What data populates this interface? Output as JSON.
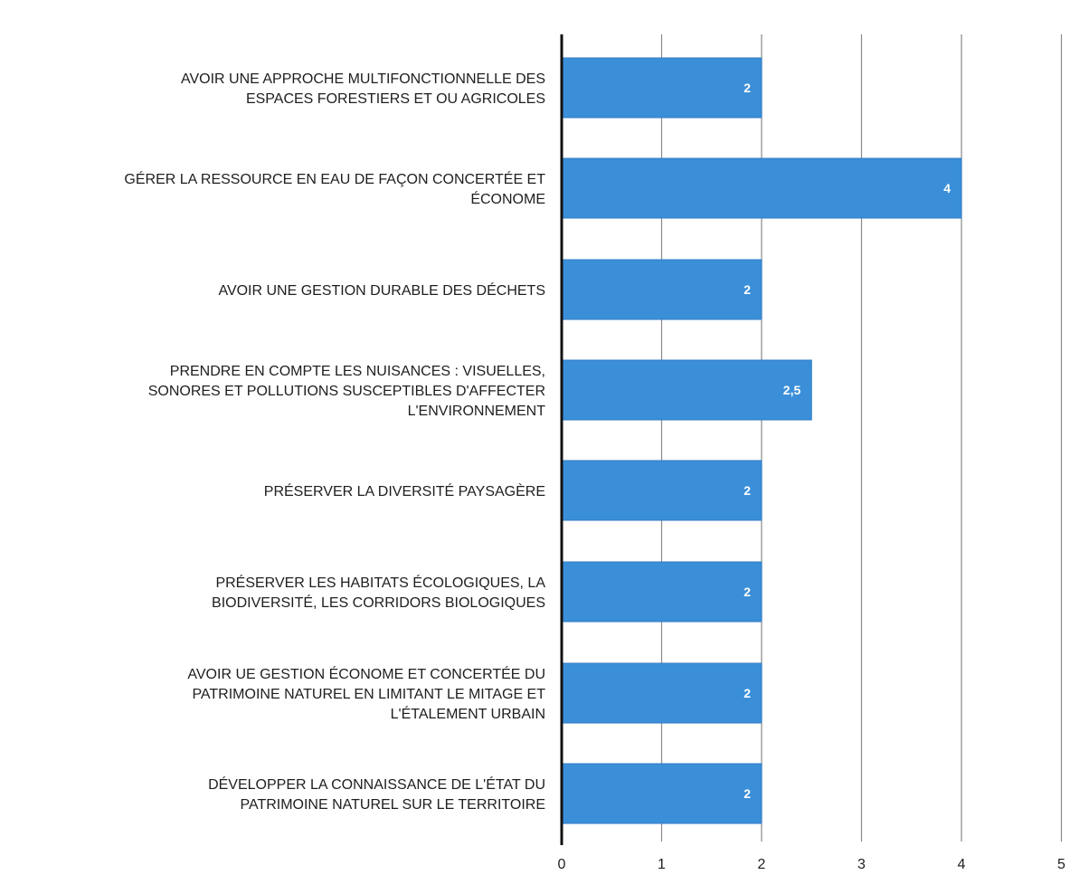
{
  "colors": {
    "bar": "#3b8fd9",
    "bar_stroke": "#2f7bc3",
    "axis": "#111111",
    "grid": "#8a8a8a",
    "text": "#1e1e1e",
    "data_label": "#ffffff",
    "background": "#ffffff"
  },
  "chart_data": {
    "type": "bar",
    "orientation": "horizontal",
    "title": "",
    "xlabel": "",
    "ylabel": "",
    "categories": [
      [
        "AVOIR UNE APPROCHE MULTIFONCTIONNELLE DES",
        "ESPACES FORESTIERS ET OU AGRICOLES"
      ],
      [
        "GÉRER LA RESSOURCE EN EAU DE FAÇON CONCERTÉE ET",
        "ÉCONOME"
      ],
      [
        "AVOIR UNE GESTION DURABLE DES DÉCHETS"
      ],
      [
        "PRENDRE EN COMPTE LES NUISANCES : VISUELLES,",
        "SONORES ET POLLUTIONS SUSCEPTIBLES D'AFFECTER",
        "L'ENVIRONNEMENT"
      ],
      [
        "PRÉSERVER LA DIVERSITÉ PAYSAGÈRE"
      ],
      [
        "PRÉSERVER LES HABITATS ÉCOLOGIQUES, LA",
        "BIODIVERSITÉ, LES CORRIDORS BIOLOGIQUES"
      ],
      [
        "AVOIR UE GESTION ÉCONOME ET CONCERTÉE DU",
        "PATRIMOINE NATUREL EN LIMITANT LE MITAGE ET",
        "L'ÉTALEMENT URBAIN"
      ],
      [
        "DÉVELOPPER LA CONNAISSANCE DE L'ÉTAT DU",
        "PATRIMOINE NATUREL SUR LE TERRITOIRE"
      ]
    ],
    "values": [
      2,
      4,
      2,
      2.5,
      2,
      2,
      2,
      2
    ],
    "data_labels": [
      "2",
      "4",
      "2",
      "2,5",
      "2",
      "2",
      "2",
      "2"
    ],
    "xlim": [
      0,
      5
    ],
    "xticks": [
      "0",
      "1",
      "2",
      "3",
      "4",
      "5"
    ],
    "grid": "vertical",
    "legend": "none"
  }
}
